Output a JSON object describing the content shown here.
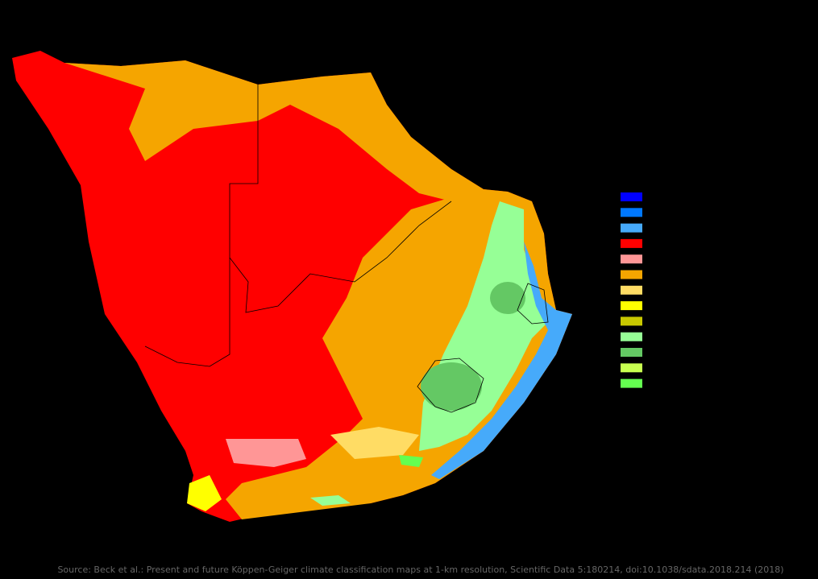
{
  "map": {
    "source": "Source: Beck et al.: Present and future Köppen-Geiger climate classification maps at 1-km resolution, Scientific Data 5:180214, doi:10.1038/sdata.2018.214 (2018)",
    "legend_colors": [
      "#0000ff",
      "#0078ff",
      "#46aafa",
      "#ff0000",
      "#ff9696",
      "#f5a500",
      "#ffdc64",
      "#ffff00",
      "#c8c800",
      "#96ff96",
      "#64c864",
      "#c8ff50",
      "#64ff50"
    ]
  }
}
